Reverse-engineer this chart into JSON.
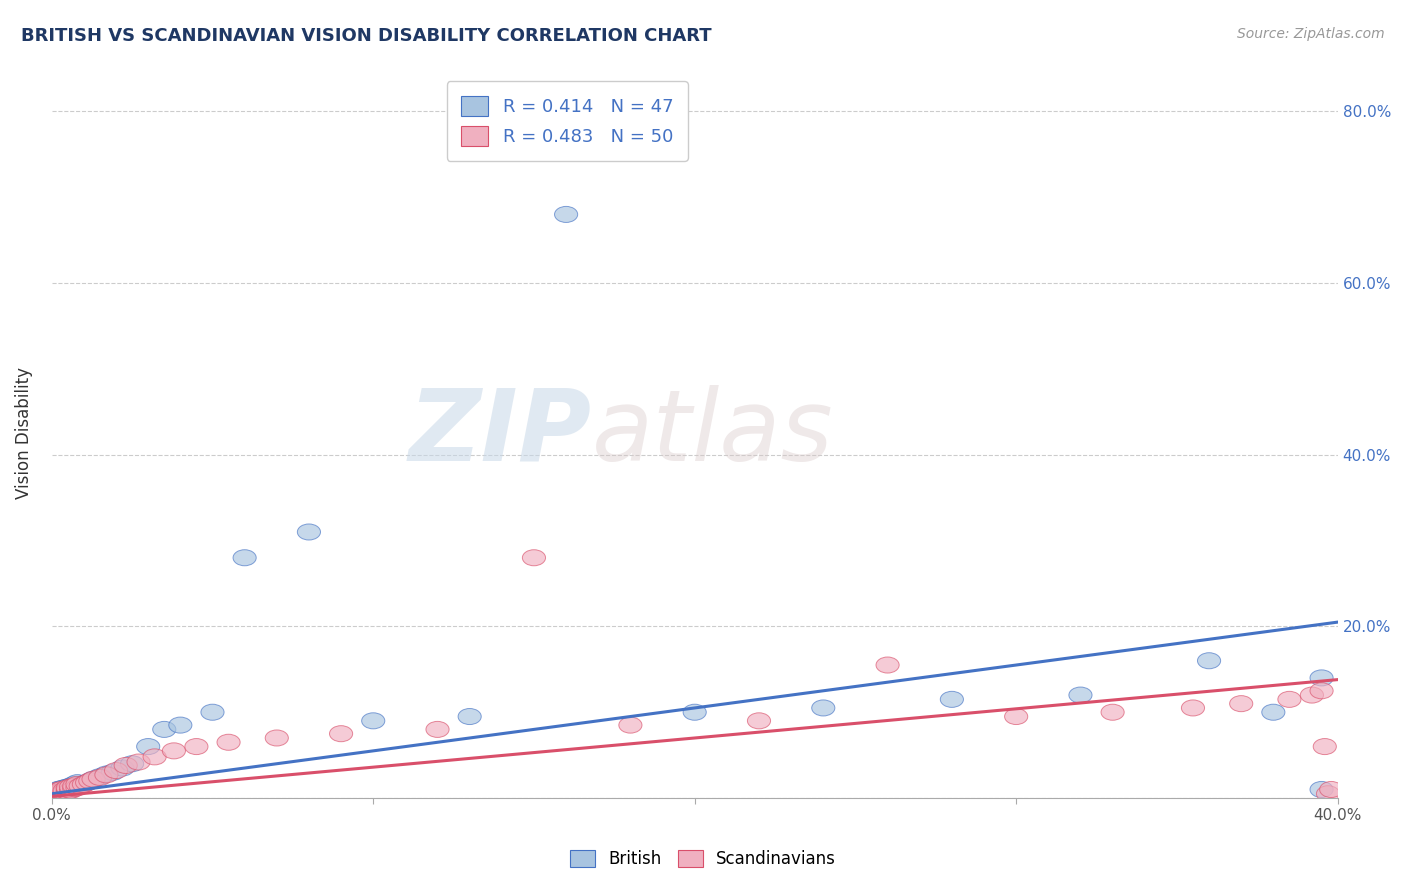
{
  "title": "BRITISH VS SCANDINAVIAN VISION DISABILITY CORRELATION CHART",
  "source": "Source: ZipAtlas.com",
  "ylabel_label": "Vision Disability",
  "xlim": [
    0.0,
    0.4
  ],
  "ylim": [
    0.0,
    0.85
  ],
  "x_ticks": [
    0.0,
    0.1,
    0.2,
    0.3,
    0.4
  ],
  "x_tick_labels": [
    "0.0%",
    "",
    "",
    "",
    "40.0%"
  ],
  "y_ticks": [
    0.0,
    0.2,
    0.4,
    0.6,
    0.8
  ],
  "right_y_tick_labels": [
    "",
    "20.0%",
    "40.0%",
    "60.0%",
    "80.0%"
  ],
  "british_R": 0.414,
  "british_N": 47,
  "scandinavian_R": 0.483,
  "scandinavian_N": 50,
  "british_color": "#a8c4e0",
  "scandinavian_color": "#f0b0c0",
  "british_line_color": "#4472C4",
  "scandinavian_line_color": "#D94F6A",
  "watermark_zip": "ZIP",
  "watermark_atlas": "atlas",
  "title_color": "#1F3864",
  "title_fontsize": 13,
  "british_x": [
    0.001,
    0.001,
    0.002,
    0.002,
    0.002,
    0.003,
    0.003,
    0.003,
    0.004,
    0.004,
    0.004,
    0.005,
    0.005,
    0.005,
    0.006,
    0.006,
    0.007,
    0.007,
    0.008,
    0.008,
    0.009,
    0.01,
    0.011,
    0.012,
    0.013,
    0.015,
    0.017,
    0.019,
    0.022,
    0.025,
    0.03,
    0.035,
    0.04,
    0.05,
    0.06,
    0.08,
    0.1,
    0.13,
    0.16,
    0.2,
    0.24,
    0.28,
    0.32,
    0.36,
    0.38,
    0.395,
    0.395
  ],
  "british_y": [
    0.005,
    0.007,
    0.006,
    0.008,
    0.01,
    0.007,
    0.009,
    0.011,
    0.008,
    0.01,
    0.012,
    0.009,
    0.011,
    0.013,
    0.01,
    0.014,
    0.012,
    0.016,
    0.013,
    0.018,
    0.015,
    0.017,
    0.018,
    0.02,
    0.022,
    0.025,
    0.028,
    0.03,
    0.035,
    0.04,
    0.06,
    0.08,
    0.085,
    0.1,
    0.28,
    0.31,
    0.09,
    0.095,
    0.68,
    0.1,
    0.105,
    0.115,
    0.12,
    0.16,
    0.1,
    0.14,
    0.01
  ],
  "scandinavian_x": [
    0.001,
    0.001,
    0.002,
    0.002,
    0.002,
    0.003,
    0.003,
    0.003,
    0.004,
    0.004,
    0.005,
    0.005,
    0.005,
    0.006,
    0.006,
    0.007,
    0.007,
    0.008,
    0.008,
    0.009,
    0.01,
    0.011,
    0.012,
    0.013,
    0.015,
    0.017,
    0.02,
    0.023,
    0.027,
    0.032,
    0.038,
    0.045,
    0.055,
    0.07,
    0.09,
    0.12,
    0.15,
    0.18,
    0.22,
    0.26,
    0.3,
    0.33,
    0.355,
    0.37,
    0.385,
    0.392,
    0.395,
    0.396,
    0.397,
    0.398
  ],
  "scandinavian_y": [
    0.004,
    0.006,
    0.005,
    0.007,
    0.009,
    0.006,
    0.008,
    0.01,
    0.007,
    0.009,
    0.008,
    0.01,
    0.012,
    0.009,
    0.013,
    0.011,
    0.014,
    0.012,
    0.016,
    0.014,
    0.016,
    0.018,
    0.02,
    0.022,
    0.024,
    0.027,
    0.032,
    0.038,
    0.042,
    0.048,
    0.055,
    0.06,
    0.065,
    0.07,
    0.075,
    0.08,
    0.28,
    0.085,
    0.09,
    0.155,
    0.095,
    0.1,
    0.105,
    0.11,
    0.115,
    0.12,
    0.125,
    0.06,
    0.005,
    0.01
  ]
}
